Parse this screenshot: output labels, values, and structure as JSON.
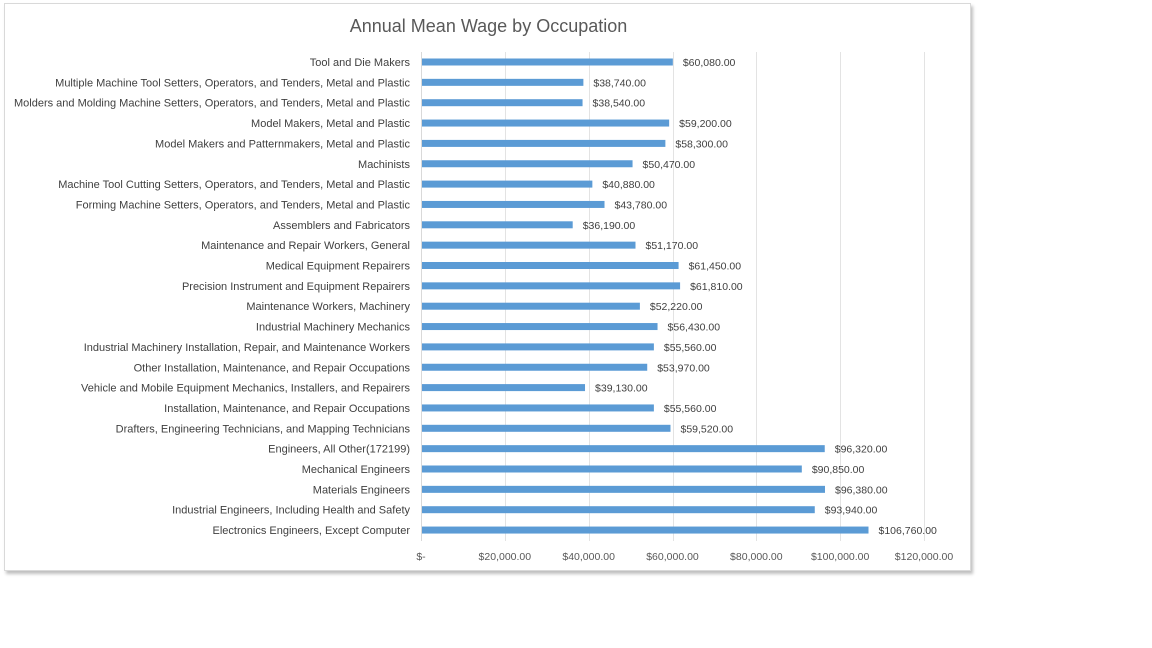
{
  "chart_data": {
    "type": "bar",
    "orientation": "horizontal",
    "title": "Annual Mean Wage by Occupation",
    "xlim": [
      0,
      120000
    ],
    "grid": true,
    "legend": "none",
    "bar_color": "#5b9bd5",
    "categories": [
      "Tool and Die Makers",
      "Multiple Machine Tool Setters, Operators, and Tenders, Metal and Plastic",
      "Molders and Molding Machine Setters, Operators, and Tenders, Metal and Plastic",
      "Model Makers, Metal and Plastic",
      "Model Makers and Patternmakers, Metal and Plastic",
      "Machinists",
      "Machine Tool Cutting Setters, Operators, and Tenders, Metal and Plastic",
      "Forming Machine Setters, Operators, and Tenders, Metal and Plastic",
      "Assemblers and Fabricators",
      "Maintenance and Repair Workers, General",
      "Medical Equipment Repairers",
      "Precision Instrument and Equipment Repairers",
      "Maintenance Workers, Machinery",
      "Industrial Machinery Mechanics",
      "Industrial Machinery Installation, Repair, and Maintenance Workers",
      "Other Installation, Maintenance, and Repair Occupations",
      "Vehicle and Mobile Equipment Mechanics, Installers, and Repairers",
      "Installation, Maintenance, and Repair Occupations",
      "Drafters, Engineering Technicians, and Mapping Technicians",
      "Engineers, All Other(172199)",
      "Mechanical Engineers",
      "Materials Engineers",
      "Industrial Engineers, Including Health and Safety",
      "Electronics Engineers, Except Computer"
    ],
    "values": [
      60080,
      38740,
      38540,
      59200,
      58300,
      50470,
      40880,
      43780,
      36190,
      51170,
      61450,
      61810,
      52220,
      56430,
      55560,
      53970,
      39130,
      55560,
      59520,
      96320,
      90850,
      96380,
      93940,
      106760
    ],
    "data_labels": [
      "$60,080.00",
      "$38,740.00",
      "$38,540.00",
      "$59,200.00",
      "$58,300.00",
      "$50,470.00",
      "$40,880.00",
      "$43,780.00",
      "$36,190.00",
      "$51,170.00",
      "$61,450.00",
      "$61,810.00",
      "$52,220.00",
      "$56,430.00",
      "$55,560.00",
      "$53,970.00",
      "$39,130.00",
      "$55,560.00",
      "$59,520.00",
      "$96,320.00",
      "$90,850.00",
      "$96,380.00",
      "$93,940.00",
      "$106,760.00"
    ],
    "x_ticks": [
      0,
      20000,
      40000,
      60000,
      80000,
      100000,
      120000
    ],
    "x_tick_labels": [
      "$-",
      "$20,000.00",
      "$40,000.00",
      "$60,000.00",
      "$80,000.00",
      "$100,000.00",
      "$120,000.00"
    ]
  }
}
